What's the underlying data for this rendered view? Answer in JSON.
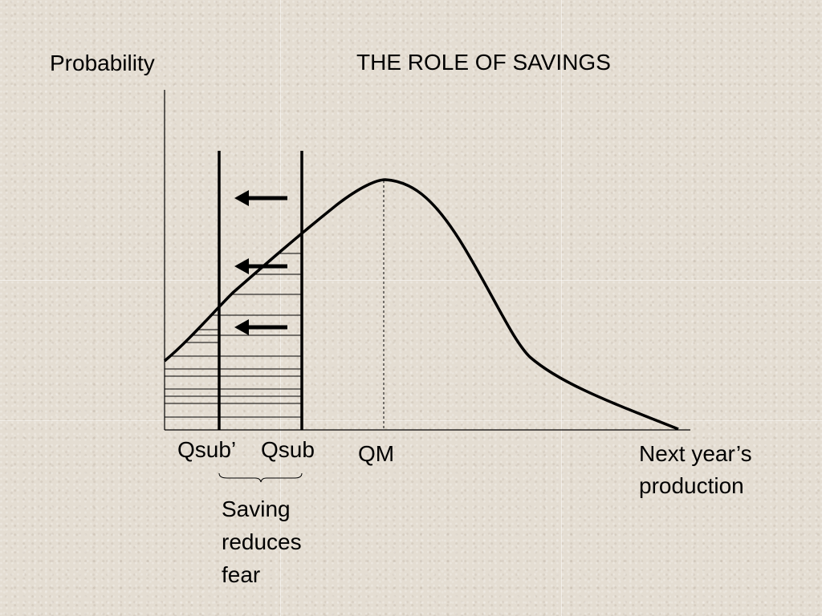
{
  "title": "THE ROLE OF SAVINGS",
  "axes": {
    "y_label": "Probability",
    "x_label_lines": [
      "Next year’s",
      "production"
    ]
  },
  "markers": {
    "qsub_prime": "Qsub’",
    "qsub": "Qsub",
    "qm": "QM"
  },
  "annotation": {
    "lines": [
      "Saving",
      "reduces",
      "fear"
    ]
  },
  "colors": {
    "background": "#e4ddd2",
    "ink": "#000000"
  }
}
